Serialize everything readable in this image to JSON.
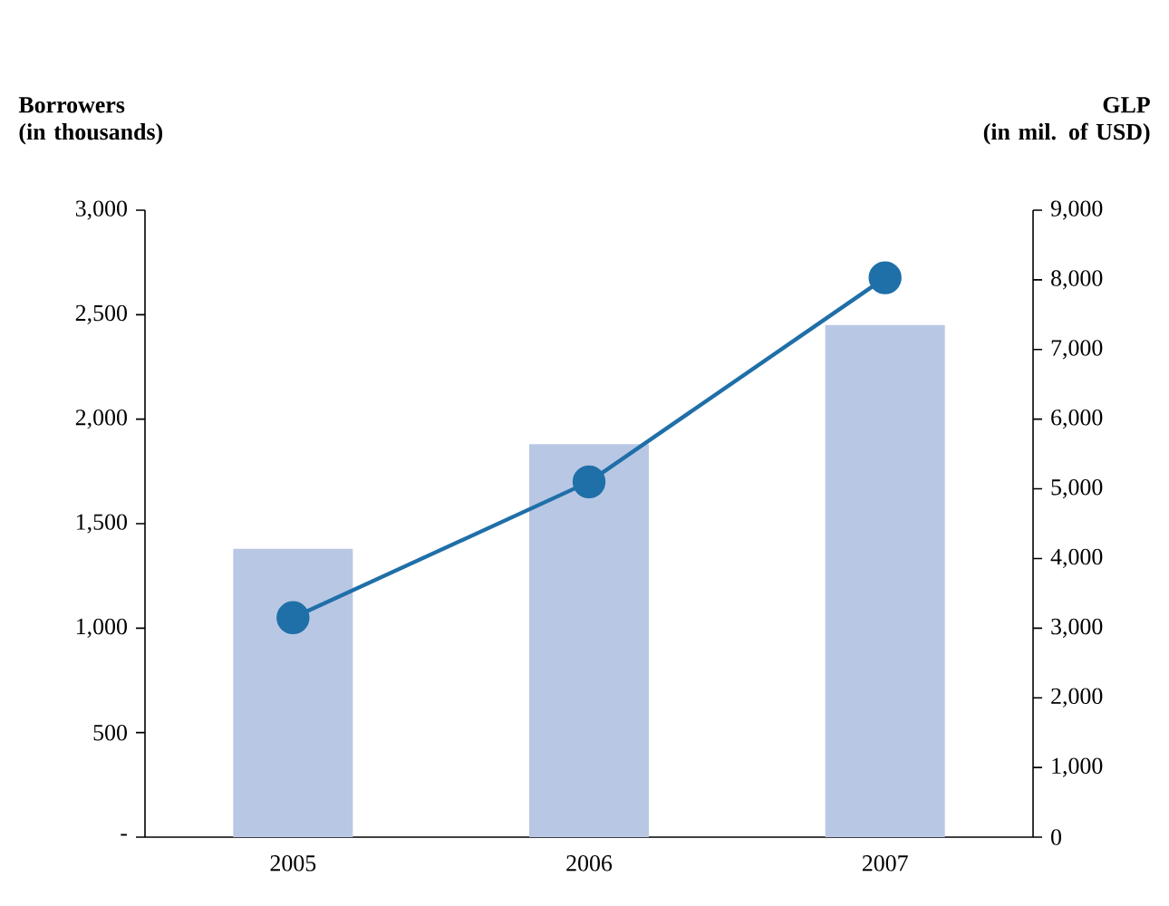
{
  "chart_data": {
    "type": "bar",
    "ylabel": "Borrowers\n(in thousands)",
    "y2label": "GLP\n(in mil. of USD)",
    "categories": [
      "2005",
      "2006",
      "2007"
    ],
    "series": [
      {
        "color": "#b8c7e3",
        "values": [
          1380,
          1880,
          2450
        ]
      },
      {
        "type": "line",
        "axis": "y2",
        "color": "#1f6fa8",
        "marker": "circle",
        "values": [
          3150,
          5100,
          8030
        ]
      }
    ],
    "ylim": [
      0,
      3000
    ],
    "yticks": [
      {
        "value": 0,
        "label": "-"
      },
      {
        "value": 500,
        "label": "500"
      },
      {
        "value": 1000,
        "label": "1,000"
      },
      {
        "value": 1500,
        "label": "1,500"
      },
      {
        "value": 2000,
        "label": "2,000"
      },
      {
        "value": 2500,
        "label": "2,500"
      },
      {
        "value": 3000,
        "label": "3,000"
      }
    ],
    "y2lim": [
      0,
      9000
    ],
    "y2ticks": [
      0,
      {
        "value": 1000,
        "label": "1,000"
      },
      {
        "value": 2000,
        "label": "2,000"
      },
      {
        "value": 3000,
        "label": "3,000"
      },
      {
        "value": 4000,
        "label": "4,000"
      },
      {
        "value": 5000,
        "label": "5,000"
      },
      {
        "value": 6000,
        "label": "6,000"
      },
      {
        "value": 7000,
        "label": "7,000"
      },
      {
        "value": 8000,
        "label": "8,000"
      },
      {
        "value": 9000,
        "label": "9,000"
      }
    ],
    "grid": false
  }
}
